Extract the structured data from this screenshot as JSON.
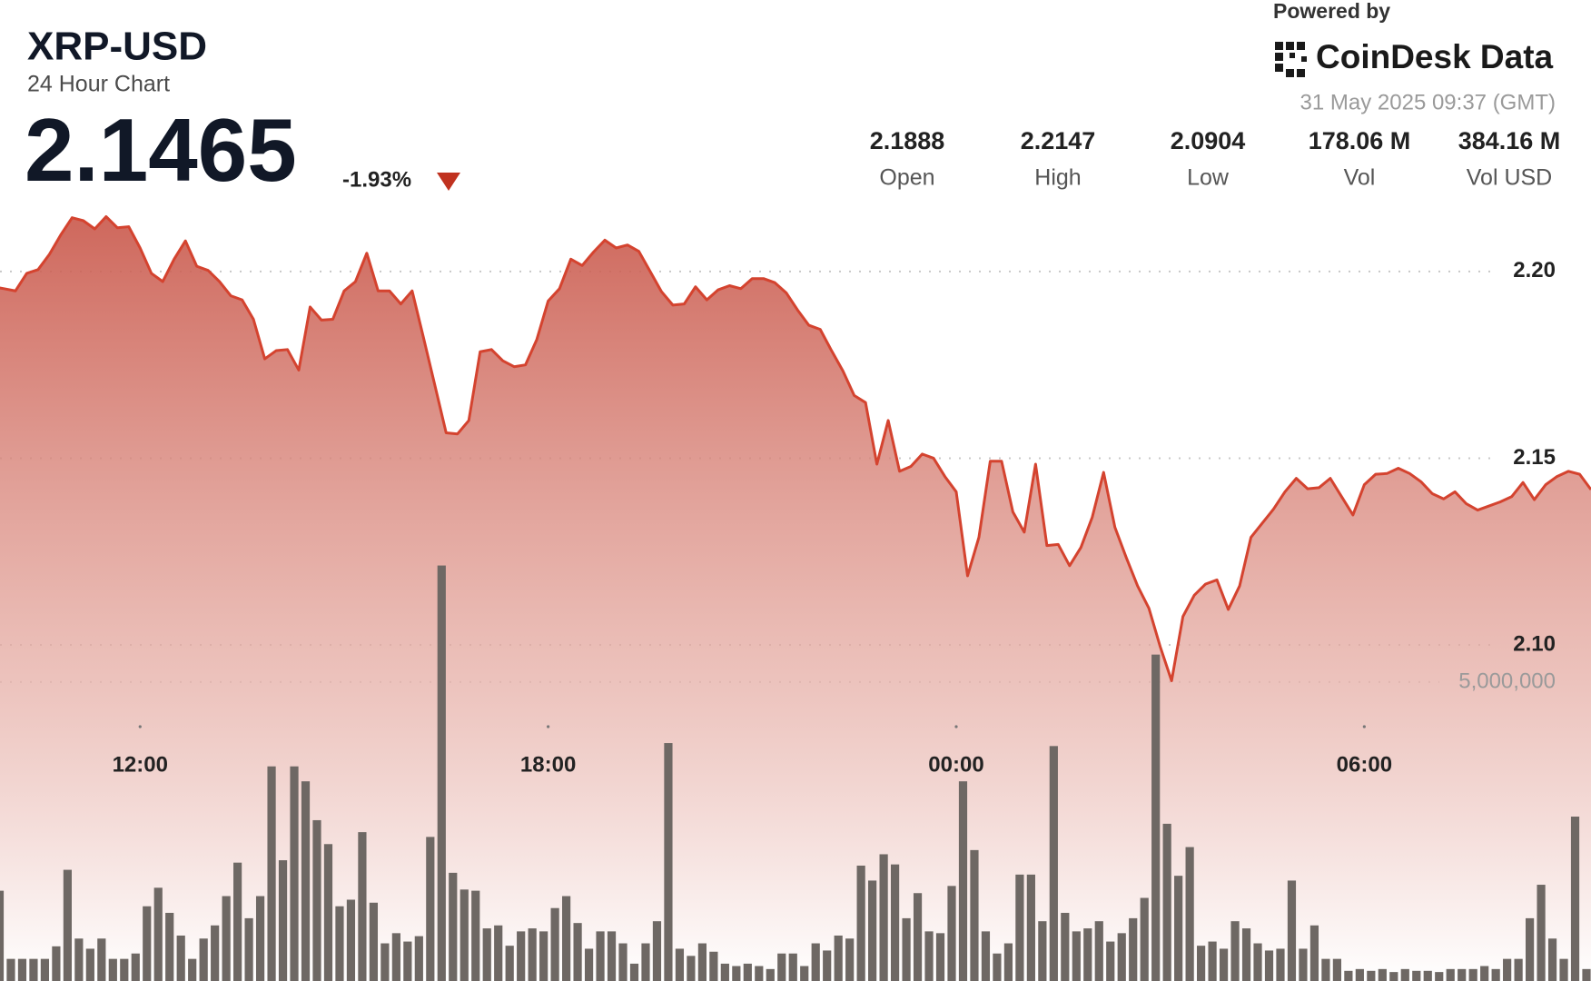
{
  "header": {
    "title": "XRP-USD",
    "subtitle": "24 Hour Chart",
    "price": "2.1465",
    "change": "-1.93%",
    "powered_by": "Powered by",
    "brand": "CoinDesk Data",
    "timestamp": "31 May 2025 09:37 (GMT)",
    "stats": [
      {
        "value": "2.1888",
        "label": "Open"
      },
      {
        "value": "2.2147",
        "label": "High"
      },
      {
        "value": "2.0904",
        "label": "Low"
      },
      {
        "value": "178.06 M",
        "label": "Vol"
      },
      {
        "value": "384.16 M",
        "label": "Vol USD"
      }
    ]
  },
  "chart_data": {
    "type": "line",
    "categories": [
      null,
      null,
      null,
      null,
      null,
      null,
      null,
      null,
      null,
      null,
      null,
      null,
      null,
      "12:00",
      null,
      null,
      null,
      null,
      null,
      null,
      null,
      null,
      null,
      null,
      null,
      null,
      null,
      null,
      null,
      null,
      null,
      null,
      null,
      null,
      null,
      null,
      null,
      null,
      null,
      null,
      null,
      null,
      null,
      null,
      null,
      null,
      null,
      null,
      null,
      "18:00",
      null,
      null,
      null,
      null,
      null,
      null,
      null,
      null,
      null,
      null,
      null,
      null,
      null,
      null,
      null,
      null,
      null,
      null,
      null,
      null,
      null,
      null,
      null,
      null,
      null,
      null,
      null,
      null,
      null,
      null,
      null,
      null,
      null,
      null,
      null,
      "00:00",
      null,
      null,
      null,
      null,
      null,
      null,
      null,
      null,
      null,
      null,
      null,
      null,
      null,
      null,
      null,
      null,
      null,
      null,
      null,
      null,
      null,
      null,
      null,
      null,
      null,
      null,
      null,
      null,
      null,
      null,
      null,
      null,
      null,
      null,
      null,
      "06:00",
      null,
      null,
      null,
      null,
      null,
      null,
      null,
      null,
      null,
      null,
      null,
      null,
      null,
      null,
      null,
      null,
      null,
      null,
      null,
      null
    ],
    "series": [
      {
        "type": "line",
        "color": "#d4432f",
        "values": [
          2.1959,
          2.1954,
          2.1948,
          2.1995,
          2.2005,
          2.2046,
          2.2098,
          2.2144,
          2.2136,
          2.2114,
          2.2147,
          2.2117,
          2.212,
          2.2063,
          2.1995,
          2.1973,
          2.2033,
          2.2082,
          2.2014,
          2.2003,
          2.1973,
          2.1935,
          2.1924,
          2.1872,
          2.1766,
          2.1788,
          2.1791,
          2.1736,
          2.1905,
          2.187,
          2.1872,
          2.1948,
          2.1973,
          2.2049,
          2.1948,
          2.1948,
          2.1913,
          2.1948,
          2.1823,
          2.1696,
          2.1568,
          2.1565,
          2.1601,
          2.1785,
          2.1791,
          2.1761,
          2.1745,
          2.175,
          2.1818,
          2.1921,
          2.1954,
          2.2033,
          2.2016,
          2.2052,
          2.2084,
          2.2063,
          2.2071,
          2.2054,
          2.2,
          2.1946,
          2.191,
          2.1913,
          2.1959,
          2.1924,
          2.1951,
          2.1962,
          2.1954,
          2.1981,
          2.1981,
          2.197,
          2.1943,
          2.1897,
          2.1856,
          2.1845,
          2.1788,
          2.1734,
          2.1668,
          2.1649,
          2.1484,
          2.1601,
          2.1465,
          2.1478,
          2.1511,
          2.15,
          2.1451,
          2.141,
          2.1185,
          2.1288,
          2.1492,
          2.1492,
          2.1356,
          2.1302,
          2.1484,
          2.1266,
          2.1269,
          2.1212,
          2.1261,
          2.1342,
          2.1462,
          2.1315,
          2.1234,
          2.1158,
          2.1098,
          2.0995,
          2.0904,
          2.1076,
          2.1133,
          2.1163,
          2.1174,
          2.1095,
          2.1158,
          2.1288,
          2.1326,
          2.1364,
          2.141,
          2.1446,
          2.1418,
          2.1421,
          2.1446,
          2.1397,
          2.1348,
          2.1429,
          2.1457,
          2.1459,
          2.1473,
          2.1459,
          2.1437,
          2.1405,
          2.1391,
          2.141,
          2.1378,
          2.1361,
          2.1372,
          2.1383,
          2.1397,
          2.1435,
          2.1389,
          2.1429,
          2.1451,
          2.1465,
          2.1457,
          2.1416
        ]
      },
      {
        "type": "bar",
        "axis": "y2",
        "color": "#6e6864",
        "values": [
          1510000,
          370000,
          370000,
          370000,
          370000,
          580000,
          1860000,
          710000,
          540000,
          710000,
          370000,
          370000,
          460000,
          1250000,
          1560000,
          1140000,
          760000,
          370000,
          710000,
          930000,
          1420000,
          1980000,
          1050000,
          1420000,
          3590000,
          2020000,
          3590000,
          3340000,
          2690000,
          2290000,
          1250000,
          1360000,
          2490000,
          1310000,
          630000,
          800000,
          660000,
          750000,
          2410000,
          6950000,
          1810000,
          1530000,
          1510000,
          880000,
          930000,
          590000,
          830000,
          880000,
          830000,
          1220000,
          1420000,
          970000,
          540000,
          830000,
          830000,
          630000,
          290000,
          630000,
          1000000,
          3980000,
          540000,
          420000,
          630000,
          490000,
          290000,
          250000,
          290000,
          250000,
          200000,
          460000,
          460000,
          250000,
          630000,
          510000,
          760000,
          710000,
          1930000,
          1680000,
          2120000,
          1950000,
          1050000,
          1470000,
          830000,
          800000,
          1590000,
          3340000,
          2190000,
          830000,
          460000,
          630000,
          1780000,
          1780000,
          1000000,
          3930000,
          1140000,
          830000,
          880000,
          1000000,
          660000,
          800000,
          1050000,
          1390000,
          5460000,
          2630000,
          1760000,
          2240000,
          590000,
          660000,
          540000,
          1000000,
          880000,
          630000,
          510000,
          540000,
          1680000,
          540000,
          930000,
          370000,
          370000,
          170000,
          200000,
          170000,
          200000,
          150000,
          200000,
          170000,
          170000,
          150000,
          200000,
          200000,
          200000,
          250000,
          200000,
          370000,
          370000,
          1050000,
          1610000,
          710000,
          370000,
          2750000,
          200000,
          200000
        ]
      }
    ],
    "ylim": [
      2.01,
      2.217
    ],
    "yticks": [
      {
        "value": 2.1,
        "label": "2.10"
      },
      2.15,
      {
        "value": 2.2,
        "label": "2.20"
      }
    ],
    "y2lim": [
      0,
      12930000
    ],
    "y2ticks": [
      {
        "value": 5000000,
        "label": "5,000,000"
      }
    ],
    "grid": true
  }
}
